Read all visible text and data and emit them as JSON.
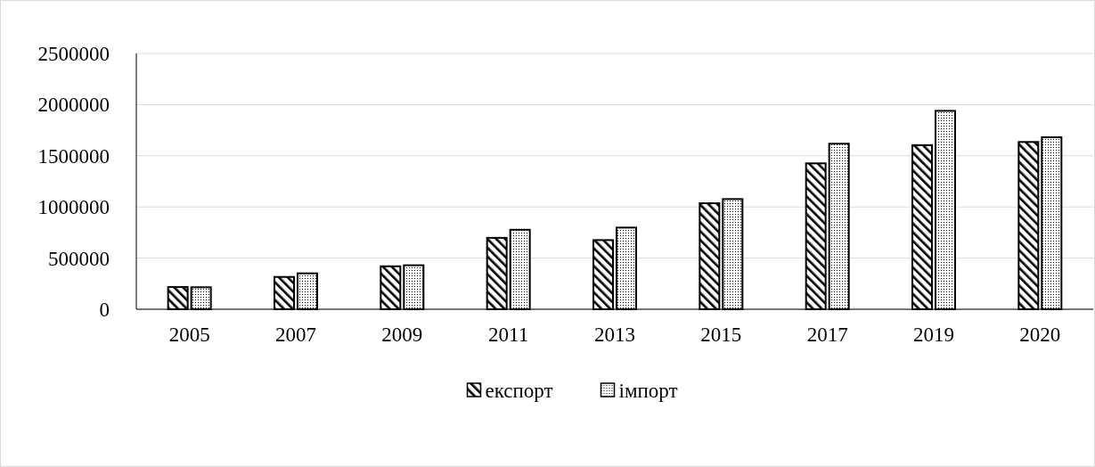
{
  "chart_data": {
    "type": "bar",
    "categories": [
      "2005",
      "2007",
      "2009",
      "2011",
      "2013",
      "2015",
      "2017",
      "2019",
      "2020"
    ],
    "series": [
      {
        "name": "експорт",
        "color": "#000000",
        "values": [
          217000,
          316000,
          420000,
          698000,
          676000,
          1036000,
          1426000,
          1604000,
          1635000
        ]
      },
      {
        "name": "імпорт",
        "color": "#000000",
        "values": [
          215000,
          351000,
          430000,
          777000,
          798000,
          1077000,
          1618000,
          1939000,
          1681000
        ]
      }
    ],
    "ylim": [
      0,
      2500000
    ],
    "yticks": [
      0,
      500000,
      1000000,
      1500000,
      2000000,
      2500000
    ],
    "grid": "y",
    "legend": "bottom"
  }
}
